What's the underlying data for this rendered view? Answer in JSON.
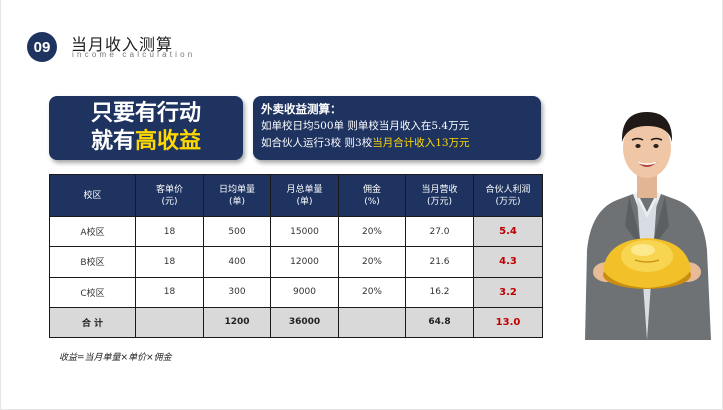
{
  "header": {
    "number": "09",
    "title": "当月收入测算",
    "subtitle": "income calculation"
  },
  "slogan": {
    "line1": "只要有行动",
    "line2_prefix": "就有",
    "line2_highlight": "高收益"
  },
  "calc": {
    "title": "外卖收益测算：",
    "line1": "如单校日均500单 则单校当月收入在5.4万元",
    "line2_prefix": "如合伙人运行3校 则3校",
    "line2_highlight": "当月合计收入13万元"
  },
  "table": {
    "headers": [
      [
        "校区"
      ],
      [
        "客单价",
        "(元)"
      ],
      [
        "日均单量",
        "(单)"
      ],
      [
        "月总单量",
        "(单)"
      ],
      [
        "佣金",
        "(%)"
      ],
      [
        "当月营收",
        "(万元)"
      ],
      [
        "合伙人利润",
        "(万元)"
      ]
    ],
    "rows": [
      [
        "A校区",
        "18",
        "500",
        "15000",
        "20%",
        "27.0",
        "5.4"
      ],
      [
        "B校区",
        "18",
        "400",
        "12000",
        "20%",
        "21.6",
        "4.3"
      ],
      [
        "C校区",
        "18",
        "300",
        "9000",
        "20%",
        "16.2",
        "3.2"
      ]
    ],
    "total": [
      "合 计",
      "",
      "1200",
      "36000",
      "",
      "64.8",
      "13.0"
    ]
  },
  "formula": "收益=当月单量×单价×佣金",
  "colors": {
    "navy": "#1e3360",
    "highlight": "#ffd800",
    "profit": "#c00000",
    "gray_cell": "#d9d9d9"
  },
  "image": {
    "person": "smiling-man-holding-gold-ingot"
  }
}
